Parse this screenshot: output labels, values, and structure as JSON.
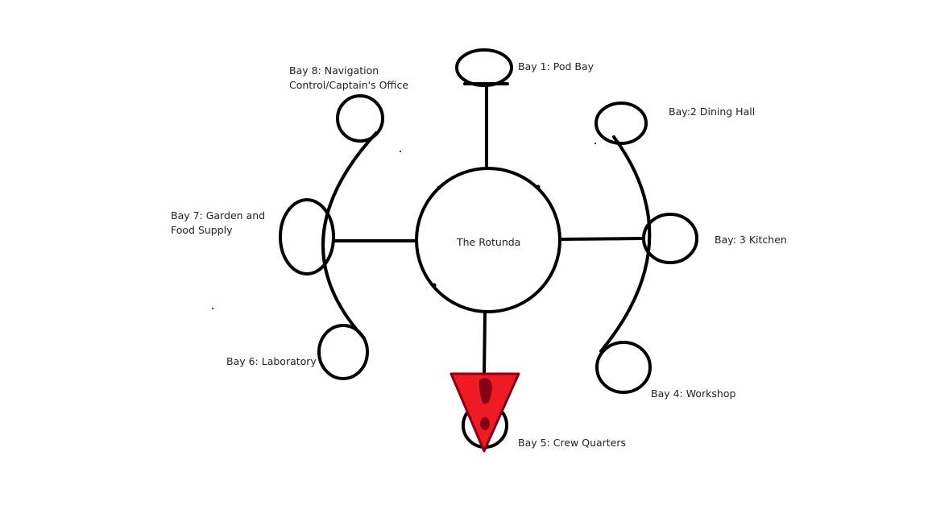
{
  "diagram": {
    "hub": {
      "label": "The Rotunda"
    },
    "bays": [
      {
        "id": "bay1",
        "lines": [
          "Bay 1: Pod Bay"
        ]
      },
      {
        "id": "bay2",
        "lines": [
          "Bay:2 Dining Hall"
        ]
      },
      {
        "id": "bay3",
        "lines": [
          "Bay: 3 Kitchen"
        ]
      },
      {
        "id": "bay4",
        "lines": [
          "Bay 4: Workshop"
        ]
      },
      {
        "id": "bay5",
        "lines": [
          "Bay 5: Crew Quarters"
        ]
      },
      {
        "id": "bay6",
        "lines": [
          "Bay 6: Laboratory"
        ]
      },
      {
        "id": "bay7",
        "lines": [
          "Bay 7: Garden and",
          "Food Supply"
        ]
      },
      {
        "id": "bay8",
        "lines": [
          "Bay 8: Navigation",
          "Control/Captain's Office"
        ]
      }
    ],
    "warning_marker": {
      "icon": "warning-triangle-icon",
      "fill": "#ed1c24",
      "mark": "#880015"
    },
    "stroke_color": "#000000"
  }
}
